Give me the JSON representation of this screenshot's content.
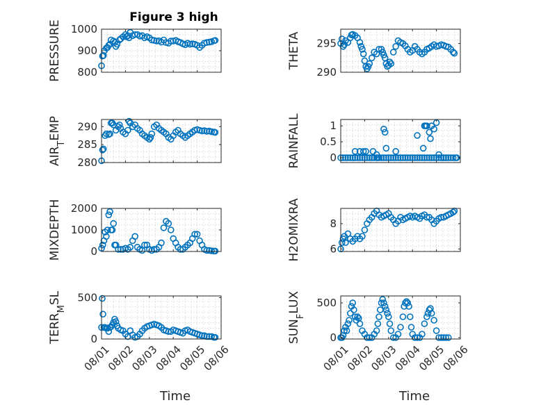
{
  "figure": {
    "title": "Figure 3 high",
    "marker_color": "#0072BD"
  },
  "chart_data": [
    {
      "type": "scatter",
      "ylabel": "PRESSURE",
      "ylim": [
        800,
        1000
      ],
      "yticks": [
        800,
        900,
        1000
      ],
      "yticklabels": [
        "800",
        "900",
        "1000"
      ],
      "xlim": [
        0,
        5
      ],
      "xticks": [
        0,
        1,
        2,
        3,
        4,
        5
      ],
      "xticklabels": [],
      "xlabel": "",
      "x": [
        0,
        0.04,
        0.08,
        0.12,
        0.2,
        0.25,
        0.3,
        0.35,
        0.4,
        0.5,
        0.55,
        0.6,
        0.65,
        0.75,
        0.8,
        0.9,
        1.0,
        1.05,
        1.1,
        1.15,
        1.2,
        1.3,
        1.4,
        1.5,
        1.6,
        1.7,
        1.8,
        1.9,
        2.0,
        2.1,
        2.2,
        2.3,
        2.4,
        2.5,
        2.6,
        2.7,
        2.8,
        2.9,
        3.0,
        3.1,
        3.2,
        3.3,
        3.4,
        3.5,
        3.6,
        3.7,
        3.8,
        3.9,
        4.0,
        4.1,
        4.2,
        4.3,
        4.4,
        4.5,
        4.6,
        4.7,
        4.75
      ],
      "y": [
        830,
        875,
        878,
        900,
        912,
        915,
        925,
        930,
        950,
        945,
        938,
        920,
        930,
        950,
        955,
        965,
        975,
        965,
        970,
        960,
        985,
        970,
        975,
        975,
        968,
        970,
        960,
        965,
        960,
        950,
        948,
        945,
        946,
        940,
        950,
        938,
        935,
        945,
        945,
        948,
        942,
        938,
        932,
        928,
        935,
        930,
        932,
        930,
        925,
        915,
        925,
        935,
        938,
        940,
        942,
        946,
        948
      ]
    },
    {
      "type": "scatter",
      "ylabel": "THETA",
      "ylim": [
        290,
        297.5
      ],
      "yticks": [
        290,
        295
      ],
      "yticklabels": [
        "290",
        "295"
      ],
      "xlim": [
        0,
        5
      ],
      "xticks": [
        0,
        1,
        2,
        3,
        4,
        5
      ],
      "xticklabels": [],
      "xlabel": "",
      "x": [
        0,
        0.05,
        0.1,
        0.15,
        0.2,
        0.3,
        0.4,
        0.45,
        0.5,
        0.6,
        0.7,
        0.8,
        0.85,
        0.9,
        0.95,
        1.0,
        1.05,
        1.1,
        1.15,
        1.2,
        1.3,
        1.4,
        1.5,
        1.6,
        1.7,
        1.75,
        1.8,
        1.85,
        1.9,
        1.95,
        2.0,
        2.05,
        2.1,
        2.2,
        2.3,
        2.4,
        2.5,
        2.6,
        2.7,
        2.8,
        2.9,
        3.0,
        3.1,
        3.2,
        3.3,
        3.4,
        3.5,
        3.6,
        3.7,
        3.8,
        3.9,
        4.0,
        4.1,
        4.2,
        4.3,
        4.4,
        4.5,
        4.6,
        4.7,
        4.75
      ],
      "y": [
        295.0,
        295.8,
        294.5,
        294.8,
        295.5,
        295.2,
        296.0,
        296.5,
        296.6,
        296.4,
        296.0,
        295.2,
        294.5,
        294.0,
        293.2,
        292.0,
        291.0,
        290.6,
        291.0,
        291.5,
        292.5,
        293.5,
        293.2,
        294.0,
        294.0,
        293.5,
        293.0,
        292.5,
        291.5,
        291.0,
        291.2,
        291.8,
        291.5,
        293.5,
        294.5,
        295.5,
        295.2,
        295.0,
        294.6,
        294.0,
        293.5,
        293.8,
        294.5,
        294.0,
        293.5,
        293.2,
        293.5,
        294.0,
        294.2,
        294.5,
        294.8,
        294.5,
        294.6,
        294.8,
        294.7,
        294.5,
        294.4,
        294.0,
        293.5,
        293.3
      ]
    },
    {
      "type": "scatter",
      "ylabel": "AIR_TEMP",
      "ylim": [
        280,
        292
      ],
      "yticks": [
        280,
        285,
        290
      ],
      "yticklabels": [
        "280",
        "285",
        "290"
      ],
      "xlim": [
        0,
        5
      ],
      "xticks": [
        0,
        1,
        2,
        3,
        4,
        5
      ],
      "xticklabels": [],
      "xlabel": "",
      "x": [
        0,
        0.04,
        0.08,
        0.15,
        0.2,
        0.3,
        0.35,
        0.4,
        0.45,
        0.5,
        0.6,
        0.7,
        0.75,
        0.8,
        0.9,
        1.0,
        1.1,
        1.15,
        1.2,
        1.3,
        1.4,
        1.5,
        1.6,
        1.7,
        1.8,
        1.9,
        2.0,
        2.05,
        2.1,
        2.2,
        2.3,
        2.4,
        2.5,
        2.6,
        2.7,
        2.8,
        2.9,
        3.0,
        3.1,
        3.2,
        3.3,
        3.4,
        3.5,
        3.6,
        3.7,
        3.8,
        3.9,
        4.0,
        4.1,
        4.2,
        4.3,
        4.4,
        4.5,
        4.6,
        4.7,
        4.75
      ],
      "y": [
        280.5,
        283.5,
        283.8,
        287.5,
        288.0,
        287.8,
        288.0,
        291.0,
        291.0,
        290.5,
        289.0,
        290.0,
        290.5,
        289.5,
        288.5,
        288.0,
        289.0,
        291.5,
        291.0,
        290.0,
        290.5,
        289.5,
        289.0,
        288.0,
        287.5,
        287.0,
        286.5,
        287.0,
        288.0,
        290.0,
        290.5,
        289.5,
        289.0,
        288.5,
        288.0,
        287.0,
        286.5,
        287.5,
        288.5,
        289.0,
        288.0,
        287.5,
        287.0,
        287.5,
        288.0,
        288.5,
        289.0,
        289.2,
        289.0,
        288.8,
        288.9,
        288.7,
        288.8,
        288.6,
        288.5,
        288.4
      ]
    },
    {
      "type": "scatter",
      "ylabel": "RAINFALL",
      "ylim": [
        -0.15,
        1.2
      ],
      "yticks": [
        0,
        0.5,
        1
      ],
      "yticklabels": [
        "0",
        "0.5",
        "1"
      ],
      "xlim": [
        0,
        5
      ],
      "xticks": [
        0,
        1,
        2,
        3,
        4,
        5
      ],
      "xticklabels": [],
      "xlabel": "",
      "x": [
        0,
        0.1,
        0.2,
        0.3,
        0.4,
        0.5,
        0.6,
        0.7,
        0.8,
        0.9,
        1.0,
        1.1,
        1.2,
        1.3,
        1.4,
        1.5,
        1.6,
        1.7,
        1.8,
        1.9,
        2.0,
        2.1,
        2.2,
        2.3,
        2.4,
        2.5,
        2.6,
        2.7,
        2.8,
        2.9,
        3.0,
        3.1,
        3.2,
        3.3,
        3.4,
        3.5,
        3.6,
        3.7,
        3.8,
        3.9,
        4.0,
        4.1,
        4.2,
        4.3,
        4.4,
        4.5,
        4.6,
        4.7,
        4.8,
        4.85,
        0.6,
        0.8,
        0.95,
        1.05,
        1.35,
        1.5,
        1.55,
        1.8,
        1.85,
        1.9,
        2.3,
        3.2,
        3.45,
        3.5,
        3.55,
        3.6,
        3.7,
        3.75,
        3.8,
        3.9,
        4.0,
        4.1,
        4.3,
        4.4
      ],
      "y": [
        0,
        0,
        0,
        0,
        0,
        0,
        0,
        0,
        0,
        0,
        0,
        0,
        0,
        0,
        0,
        0,
        0,
        0,
        0,
        0,
        0,
        0,
        0,
        0,
        0,
        0,
        0,
        0,
        0,
        0,
        0,
        0,
        0,
        0,
        0,
        0,
        0,
        0,
        0,
        0,
        0,
        0,
        0,
        0,
        0,
        0,
        0,
        0,
        0,
        0,
        0.2,
        0.2,
        0.2,
        0.2,
        0.2,
        0.1,
        0.0,
        0.9,
        0.8,
        0.3,
        0.2,
        0.7,
        0.3,
        1.0,
        1.0,
        1.0,
        0.8,
        0.6,
        1.0,
        0.9,
        1.1,
        0.1,
        0.0,
        0.0
      ]
    },
    {
      "type": "scatter",
      "ylabel": "MIXDEPTH",
      "ylim": [
        0,
        2000
      ],
      "yticks": [
        0,
        1000,
        2000
      ],
      "yticklabels": [
        "0",
        "1000",
        "2000"
      ],
      "xlim": [
        0,
        5
      ],
      "xticks": [
        0,
        1,
        2,
        3,
        4,
        5
      ],
      "xticklabels": [],
      "xlabel": "",
      "x": [
        0,
        0.05,
        0.1,
        0.15,
        0.2,
        0.25,
        0.3,
        0.35,
        0.4,
        0.45,
        0.5,
        0.55,
        0.6,
        0.7,
        0.8,
        0.9,
        1.0,
        1.1,
        1.2,
        1.3,
        1.4,
        1.5,
        1.6,
        1.7,
        1.8,
        1.9,
        2.0,
        2.1,
        2.2,
        2.3,
        2.4,
        2.5,
        2.6,
        2.7,
        2.8,
        2.9,
        3.0,
        3.1,
        3.2,
        3.3,
        3.4,
        3.5,
        3.6,
        3.7,
        3.8,
        3.9,
        4.0,
        4.1,
        4.2,
        4.3,
        4.4,
        4.5,
        4.6,
        4.7,
        4.75
      ],
      "y": [
        150,
        300,
        500,
        900,
        700,
        1000,
        1700,
        1850,
        1000,
        1000,
        1300,
        300,
        300,
        100,
        100,
        100,
        150,
        100,
        200,
        500,
        700,
        200,
        100,
        50,
        300,
        300,
        100,
        50,
        100,
        100,
        200,
        400,
        1100,
        1400,
        1300,
        1000,
        600,
        400,
        200,
        100,
        100,
        200,
        300,
        400,
        600,
        800,
        800,
        500,
        300,
        100,
        50,
        50,
        30,
        20,
        20
      ]
    },
    {
      "type": "scatter",
      "ylabel": "H2OMIXRA",
      "ylim": [
        5.8,
        9.2
      ],
      "yticks": [
        6,
        8
      ],
      "yticklabels": [
        "6",
        "8"
      ],
      "xlim": [
        0,
        5
      ],
      "xticks": [
        0,
        1,
        2,
        3,
        4,
        5
      ],
      "xticklabels": [],
      "xlabel": "",
      "x": [
        0,
        0.05,
        0.1,
        0.15,
        0.2,
        0.3,
        0.4,
        0.5,
        0.6,
        0.7,
        0.8,
        0.9,
        1.0,
        1.1,
        1.2,
        1.3,
        1.4,
        1.5,
        1.6,
        1.7,
        1.8,
        1.9,
        2.0,
        2.1,
        2.2,
        2.3,
        2.4,
        2.5,
        2.6,
        2.7,
        2.8,
        2.9,
        3.0,
        3.1,
        3.2,
        3.3,
        3.4,
        3.5,
        3.6,
        3.7,
        3.8,
        3.9,
        4.0,
        4.1,
        4.2,
        4.3,
        4.4,
        4.5,
        4.6,
        4.7,
        4.75
      ],
      "y": [
        6.0,
        6.5,
        6.8,
        7.0,
        6.5,
        7.2,
        6.8,
        6.6,
        6.8,
        7.0,
        6.8,
        7.0,
        7.5,
        8.0,
        8.3,
        8.5,
        8.8,
        9.0,
        8.7,
        8.5,
        8.6,
        8.7,
        8.8,
        8.5,
        8.3,
        8.0,
        8.2,
        8.5,
        8.3,
        8.4,
        8.5,
        8.6,
        8.5,
        8.6,
        8.5,
        8.4,
        8.6,
        8.7,
        8.5,
        8.5,
        8.3,
        8.0,
        8.2,
        8.4,
        8.5,
        8.5,
        8.6,
        8.7,
        8.8,
        8.9,
        9.0
      ]
    },
    {
      "type": "scatter",
      "ylabel": "TERR_MSL",
      "ylim": [
        0,
        520
      ],
      "yticks": [
        0,
        500
      ],
      "yticklabels": [
        "0",
        "500"
      ],
      "xlim": [
        0,
        5
      ],
      "xticks": [
        0,
        1,
        2,
        3,
        4,
        5
      ],
      "xticklabels": [
        "08/01",
        "08/02",
        "08/03",
        "08/04",
        "08/05",
        "08/06"
      ],
      "xlabel": "Time",
      "x": [
        0,
        0.03,
        0.06,
        0.1,
        0.15,
        0.2,
        0.25,
        0.3,
        0.35,
        0.4,
        0.45,
        0.5,
        0.55,
        0.6,
        0.65,
        0.7,
        0.8,
        0.9,
        1.0,
        1.1,
        1.2,
        1.3,
        1.4,
        1.5,
        1.6,
        1.7,
        1.8,
        1.9,
        2.0,
        2.1,
        2.2,
        2.3,
        2.4,
        2.5,
        2.6,
        2.7,
        2.8,
        2.9,
        3.0,
        3.1,
        3.2,
        3.3,
        3.4,
        3.5,
        3.6,
        3.7,
        3.8,
        3.9,
        4.0,
        4.1,
        4.2,
        4.3,
        4.4,
        4.5,
        4.6,
        4.7,
        4.75
      ],
      "y": [
        140,
        490,
        300,
        140,
        140,
        130,
        130,
        90,
        140,
        150,
        170,
        200,
        240,
        210,
        160,
        130,
        110,
        100,
        60,
        30,
        100,
        50,
        20,
        30,
        60,
        100,
        130,
        150,
        160,
        170,
        180,
        170,
        160,
        140,
        110,
        100,
        90,
        90,
        110,
        100,
        90,
        80,
        70,
        100,
        110,
        90,
        80,
        70,
        60,
        50,
        40,
        40,
        30,
        30,
        30,
        20,
        20
      ]
    },
    {
      "type": "scatter",
      "ylabel": "SUN_FLUX",
      "ylim": [
        -20,
        600
      ],
      "yticks": [
        0,
        500
      ],
      "yticklabels": [
        "0",
        "500"
      ],
      "xlim": [
        0,
        5
      ],
      "xticks": [
        0,
        1,
        2,
        3,
        4,
        5
      ],
      "xticklabels": [
        "08/01",
        "08/02",
        "08/03",
        "08/04",
        "08/05",
        "08/06"
      ],
      "xlabel": "Time",
      "x": [
        0,
        0.05,
        0.1,
        0.15,
        0.2,
        0.25,
        0.3,
        0.35,
        0.4,
        0.45,
        0.5,
        0.55,
        0.6,
        0.65,
        0.7,
        0.75,
        0.8,
        0.9,
        1.0,
        1.1,
        1.2,
        1.3,
        1.4,
        1.5,
        1.55,
        1.6,
        1.65,
        1.7,
        1.75,
        1.8,
        1.85,
        1.9,
        1.95,
        2.0,
        2.05,
        2.1,
        2.2,
        2.3,
        2.4,
        2.5,
        2.6,
        2.65,
        2.7,
        2.75,
        2.8,
        2.85,
        2.9,
        2.95,
        3.0,
        3.1,
        3.2,
        3.3,
        3.4,
        3.5,
        3.6,
        3.65,
        3.7,
        3.75,
        3.8,
        3.9,
        4.0,
        4.1,
        4.2,
        4.3,
        4.4,
        4.5
      ],
      "y": [
        0,
        0,
        30,
        100,
        150,
        100,
        200,
        250,
        350,
        450,
        500,
        400,
        300,
        250,
        300,
        280,
        200,
        100,
        50,
        0,
        0,
        0,
        50,
        100,
        200,
        300,
        400,
        500,
        550,
        500,
        450,
        400,
        350,
        300,
        200,
        100,
        0,
        0,
        50,
        150,
        300,
        450,
        500,
        520,
        500,
        450,
        300,
        150,
        50,
        0,
        0,
        0,
        50,
        200,
        300,
        350,
        400,
        420,
        350,
        250,
        100,
        0,
        0,
        0,
        0,
        0
      ]
    }
  ]
}
